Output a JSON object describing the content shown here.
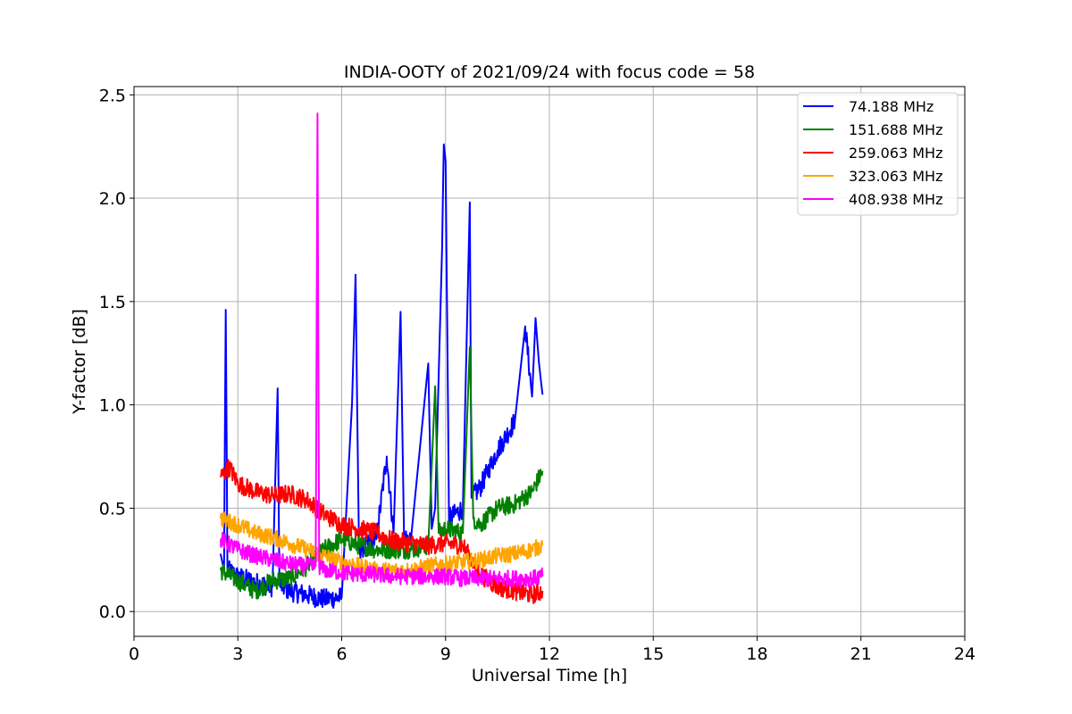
{
  "chart_data": {
    "type": "line",
    "title": "INDIA-OOTY of 2021/09/24 with focus code = 58",
    "xlabel": "Universal Time [h]",
    "ylabel": "Y-factor [dB]",
    "xlim": [
      0,
      24
    ],
    "ylim": [
      -0.12,
      2.54
    ],
    "xticks": [
      0,
      3,
      6,
      9,
      12,
      15,
      18,
      21,
      24
    ],
    "yticks": [
      0.0,
      0.5,
      1.0,
      1.5,
      2.0,
      2.5
    ],
    "xtick_labels": [
      "0",
      "3",
      "6",
      "9",
      "12",
      "15",
      "18",
      "21",
      "24"
    ],
    "ytick_labels": [
      "0.0",
      "0.5",
      "1.0",
      "1.5",
      "2.0",
      "2.5"
    ],
    "grid": true,
    "legend_position": "top-right",
    "series": [
      {
        "name": " 74.188 MHz",
        "color": "#0000ff",
        "x": [
          2.5,
          2.6,
          2.65,
          2.7,
          3.0,
          3.5,
          4.0,
          4.15,
          4.2,
          4.5,
          5.0,
          5.5,
          6.0,
          6.3,
          6.4,
          6.5,
          7.0,
          7.3,
          7.5,
          7.7,
          7.8,
          8.0,
          8.5,
          8.6,
          8.7,
          8.9,
          8.95,
          9.0,
          9.05,
          9.1,
          9.5,
          9.7,
          9.75,
          10.0,
          10.5,
          11.0,
          11.3,
          11.5,
          11.6,
          11.7,
          11.8
        ],
        "values": [
          0.28,
          0.2,
          1.46,
          0.2,
          0.17,
          0.14,
          0.12,
          1.08,
          0.13,
          0.1,
          0.08,
          0.06,
          0.07,
          1.01,
          1.63,
          0.3,
          0.35,
          0.75,
          0.38,
          1.45,
          0.36,
          0.35,
          1.2,
          0.4,
          0.5,
          1.76,
          2.26,
          2.18,
          1.36,
          0.45,
          0.5,
          1.98,
          0.55,
          0.6,
          0.78,
          0.92,
          1.38,
          1.04,
          1.42,
          1.2,
          1.05
        ]
      },
      {
        "name": "151.688 MHz",
        "color": "#008000",
        "x": [
          2.5,
          3.0,
          3.5,
          4.0,
          4.5,
          5.0,
          5.5,
          6.0,
          6.5,
          7.0,
          7.5,
          8.0,
          8.5,
          8.7,
          8.8,
          9.0,
          9.5,
          9.7,
          9.8,
          10.0,
          10.5,
          11.0,
          11.5,
          11.8
        ],
        "values": [
          0.2,
          0.15,
          0.1,
          0.15,
          0.16,
          0.22,
          0.3,
          0.35,
          0.32,
          0.3,
          0.3,
          0.3,
          0.32,
          1.09,
          0.38,
          0.4,
          0.38,
          1.28,
          0.45,
          0.42,
          0.5,
          0.52,
          0.58,
          0.68
        ]
      },
      {
        "name": "259.063 MHz",
        "color": "#ff0000",
        "x": [
          2.5,
          2.75,
          3.0,
          3.5,
          4.0,
          4.5,
          5.0,
          5.5,
          6.0,
          6.5,
          7.0,
          7.5,
          8.0,
          8.5,
          9.0,
          9.5,
          10.0,
          10.5,
          11.0,
          11.5,
          11.8
        ],
        "values": [
          0.65,
          0.7,
          0.62,
          0.58,
          0.56,
          0.57,
          0.54,
          0.47,
          0.42,
          0.4,
          0.38,
          0.34,
          0.33,
          0.32,
          0.33,
          0.32,
          0.18,
          0.12,
          0.1,
          0.08,
          0.1
        ]
      },
      {
        "name": "323.063 MHz",
        "color": "#ffa500",
        "x": [
          2.5,
          3.0,
          3.5,
          4.0,
          4.5,
          5.0,
          5.5,
          6.0,
          6.5,
          7.0,
          7.5,
          8.0,
          8.5,
          9.0,
          9.5,
          10.0,
          10.5,
          11.0,
          11.5,
          11.8
        ],
        "values": [
          0.45,
          0.42,
          0.38,
          0.36,
          0.33,
          0.3,
          0.27,
          0.24,
          0.22,
          0.2,
          0.2,
          0.2,
          0.22,
          0.23,
          0.24,
          0.25,
          0.27,
          0.28,
          0.3,
          0.32
        ]
      },
      {
        "name": "408.938 MHz",
        "color": "#ff00ff",
        "x": [
          2.5,
          3.0,
          3.5,
          4.0,
          4.5,
          5.0,
          5.25,
          5.3,
          5.35,
          5.5,
          6.0,
          6.5,
          7.0,
          7.5,
          8.0,
          8.5,
          9.0,
          9.5,
          10.0,
          10.5,
          11.0,
          11.5,
          11.8
        ],
        "values": [
          0.35,
          0.3,
          0.27,
          0.25,
          0.23,
          0.22,
          0.22,
          2.41,
          0.22,
          0.2,
          0.19,
          0.18,
          0.18,
          0.17,
          0.17,
          0.17,
          0.17,
          0.16,
          0.16,
          0.16,
          0.16,
          0.16,
          0.17
        ]
      }
    ]
  }
}
